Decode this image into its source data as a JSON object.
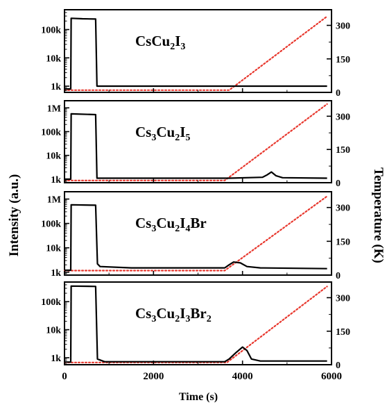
{
  "chart_data": {
    "type": "line",
    "xlabel": "Time (s)",
    "ylabel_left": "Intensity (a.u.)",
    "ylabel_right": "Temperature (K)",
    "xlim": [
      0,
      6000
    ],
    "x_ticks": [
      0,
      2000,
      4000,
      6000
    ],
    "x_tick_labels": [
      "0",
      "2000",
      "4000",
      "6000"
    ],
    "y_right_lim": [
      0,
      370
    ],
    "y_right_ticks": [
      0,
      150,
      300
    ],
    "y_right_tick_labels": [
      "0",
      "150",
      "300"
    ],
    "left_scale": "log",
    "line_colors": {
      "intensity": "#000000",
      "temperature": "#e8382e"
    },
    "panels": [
      {
        "label": {
          "main": "Cs",
          "parts": [
            [
              "Cs",
              ""
            ],
            [
              "Cu",
              "2"
            ],
            [
              "I",
              "3"
            ]
          ]
        },
        "ylim_log": [
          2.78,
          5.7
        ],
        "y_ticks": [
          1000,
          10000,
          100000
        ],
        "y_tick_labels": [
          "1k",
          "10k",
          "100k"
        ],
        "intensity": [
          [
            0,
            800
          ],
          [
            140,
            800
          ],
          [
            150,
            250000
          ],
          [
            400,
            240000
          ],
          [
            700,
            235000
          ],
          [
            730,
            1000
          ],
          [
            2000,
            1000
          ],
          [
            4000,
            1000
          ],
          [
            5900,
            1000
          ]
        ],
        "temperature": [
          [
            0,
            10
          ],
          [
            3700,
            10
          ],
          [
            5900,
            340
          ]
        ]
      },
      {
        "label": {
          "parts": [
            [
              "Cs",
              "3"
            ],
            [
              "Cu",
              "2"
            ],
            [
              "I",
              "5"
            ]
          ]
        },
        "ylim_log": [
          2.85,
          6.3
        ],
        "y_ticks": [
          1000,
          10000,
          100000,
          1000000
        ],
        "y_tick_labels": [
          "1k",
          "10k",
          "100k",
          "1M"
        ],
        "intensity": [
          [
            0,
            1000
          ],
          [
            140,
            1000
          ],
          [
            150,
            560000
          ],
          [
            700,
            520000
          ],
          [
            730,
            1100
          ],
          [
            3700,
            1100
          ],
          [
            4450,
            1200
          ],
          [
            4550,
            1500
          ],
          [
            4650,
            2000
          ],
          [
            4750,
            1400
          ],
          [
            4900,
            1150
          ],
          [
            5900,
            1100
          ]
        ],
        "temperature": [
          [
            0,
            10
          ],
          [
            3600,
            10
          ],
          [
            5900,
            355
          ]
        ]
      },
      {
        "label": {
          "parts": [
            [
              "Cs",
              "3"
            ],
            [
              "Cu",
              "2"
            ],
            [
              "I",
              "4"
            ],
            [
              "Br",
              ""
            ]
          ]
        },
        "ylim_log": [
          2.88,
          6.3
        ],
        "y_ticks": [
          1000,
          10000,
          100000,
          1000000
        ],
        "y_tick_labels": [
          "1k",
          "10k",
          "100k",
          "1M"
        ],
        "intensity": [
          [
            0,
            1200
          ],
          [
            140,
            1200
          ],
          [
            150,
            580000
          ],
          [
            700,
            560000
          ],
          [
            740,
            2200
          ],
          [
            800,
            1700
          ],
          [
            1500,
            1500
          ],
          [
            3600,
            1500
          ],
          [
            3700,
            2000
          ],
          [
            3800,
            2600
          ],
          [
            3950,
            2400
          ],
          [
            4100,
            1700
          ],
          [
            4400,
            1500
          ],
          [
            5900,
            1400
          ]
        ],
        "temperature": [
          [
            0,
            20
          ],
          [
            3600,
            20
          ],
          [
            5900,
            350
          ]
        ]
      },
      {
        "label": {
          "parts": [
            [
              "Cs",
              "3"
            ],
            [
              "Cu",
              "2"
            ],
            [
              "I",
              "3"
            ],
            [
              "Br",
              "2"
            ]
          ]
        },
        "ylim_log": [
          2.75,
          5.7
        ],
        "y_ticks": [
          1000,
          10000,
          100000
        ],
        "y_tick_labels": [
          "1k",
          "10k",
          "100k"
        ],
        "intensity": [
          [
            0,
            700
          ],
          [
            140,
            700
          ],
          [
            150,
            360000
          ],
          [
            700,
            350000
          ],
          [
            740,
            900
          ],
          [
            900,
            720
          ],
          [
            3600,
            720
          ],
          [
            3700,
            900
          ],
          [
            3850,
            1500
          ],
          [
            4000,
            2400
          ],
          [
            4100,
            1800
          ],
          [
            4200,
            900
          ],
          [
            4400,
            760
          ],
          [
            5900,
            760
          ]
        ],
        "temperature": [
          [
            0,
            10
          ],
          [
            3650,
            10
          ],
          [
            5900,
            350
          ]
        ]
      }
    ]
  }
}
